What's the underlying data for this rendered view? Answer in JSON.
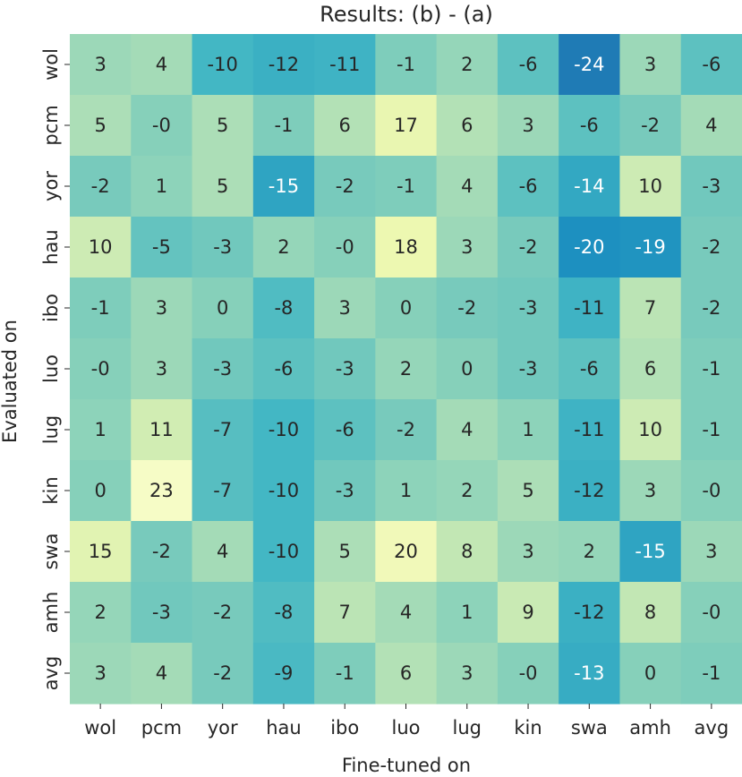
{
  "chart_data": {
    "type": "heatmap",
    "title": "Results: (b) - (a)",
    "xlabel": "Fine-tuned on",
    "ylabel": "Evaluated on",
    "x_categories": [
      "wol",
      "pcm",
      "yor",
      "hau",
      "ibo",
      "luo",
      "lug",
      "kin",
      "swa",
      "amh",
      "avg"
    ],
    "y_categories": [
      "wol",
      "pcm",
      "yor",
      "hau",
      "ibo",
      "luo",
      "lug",
      "kin",
      "swa",
      "amh",
      "avg"
    ],
    "values": [
      [
        3,
        4,
        -10,
        -12,
        -11,
        -1,
        2,
        -6,
        -24,
        3,
        -6
      ],
      [
        5,
        0,
        5,
        -1,
        6,
        17,
        6,
        3,
        -6,
        -2,
        4
      ],
      [
        -2,
        1,
        5,
        -15,
        -2,
        -1,
        4,
        -6,
        -14,
        10,
        -3
      ],
      [
        10,
        -5,
        -3,
        2,
        0,
        18,
        3,
        -2,
        -20,
        -19,
        -2
      ],
      [
        -1,
        3,
        0,
        -8,
        3,
        0,
        -2,
        -3,
        -11,
        7,
        -2
      ],
      [
        0,
        3,
        -3,
        -6,
        -3,
        2,
        0,
        -3,
        -6,
        6,
        -1
      ],
      [
        1,
        11,
        -7,
        -10,
        -6,
        -2,
        4,
        1,
        -11,
        10,
        -1
      ],
      [
        0,
        23,
        -7,
        -10,
        -3,
        1,
        2,
        5,
        -12,
        3,
        0
      ],
      [
        15,
        -2,
        4,
        -10,
        5,
        20,
        8,
        3,
        2,
        -15,
        3
      ],
      [
        2,
        -3,
        -2,
        -8,
        7,
        4,
        1,
        9,
        -12,
        8,
        0
      ],
      [
        3,
        4,
        -2,
        -9,
        -1,
        6,
        3,
        0,
        -13,
        0,
        -1
      ]
    ],
    "labels": [
      [
        "3",
        "4",
        "-10",
        "-12",
        "-11",
        "-1",
        "2",
        "-6",
        "-24",
        "3",
        "-6"
      ],
      [
        "5",
        "-0",
        "5",
        "-1",
        "6",
        "17",
        "6",
        "3",
        "-6",
        "-2",
        "4"
      ],
      [
        "-2",
        "1",
        "5",
        "-15",
        "-2",
        "-1",
        "4",
        "-6",
        "-14",
        "10",
        "-3"
      ],
      [
        "10",
        "-5",
        "-3",
        "2",
        "-0",
        "18",
        "3",
        "-2",
        "-20",
        "-19",
        "-2"
      ],
      [
        "-1",
        "3",
        "0",
        "-8",
        "3",
        "0",
        "-2",
        "-3",
        "-11",
        "7",
        "-2"
      ],
      [
        "-0",
        "3",
        "-3",
        "-6",
        "-3",
        "2",
        "0",
        "-3",
        "-6",
        "6",
        "-1"
      ],
      [
        "1",
        "11",
        "-7",
        "-10",
        "-6",
        "-2",
        "4",
        "1",
        "-11",
        "10",
        "-1"
      ],
      [
        "0",
        "23",
        "-7",
        "-10",
        "-3",
        "1",
        "2",
        "5",
        "-12",
        "3",
        "-0"
      ],
      [
        "15",
        "-2",
        "4",
        "-10",
        "5",
        "20",
        "8",
        "3",
        "2",
        "-15",
        "3"
      ],
      [
        "2",
        "-3",
        "-2",
        "-8",
        "7",
        "4",
        "1",
        "9",
        "-12",
        "8",
        "-0"
      ],
      [
        "3",
        "4",
        "-2",
        "-9",
        "-1",
        "6",
        "3",
        "-0",
        "-13",
        "0",
        "-1"
      ]
    ],
    "colormap": "YlGnBu",
    "value_range": [
      -24,
      23
    ],
    "grid": false,
    "colorbar": false
  }
}
